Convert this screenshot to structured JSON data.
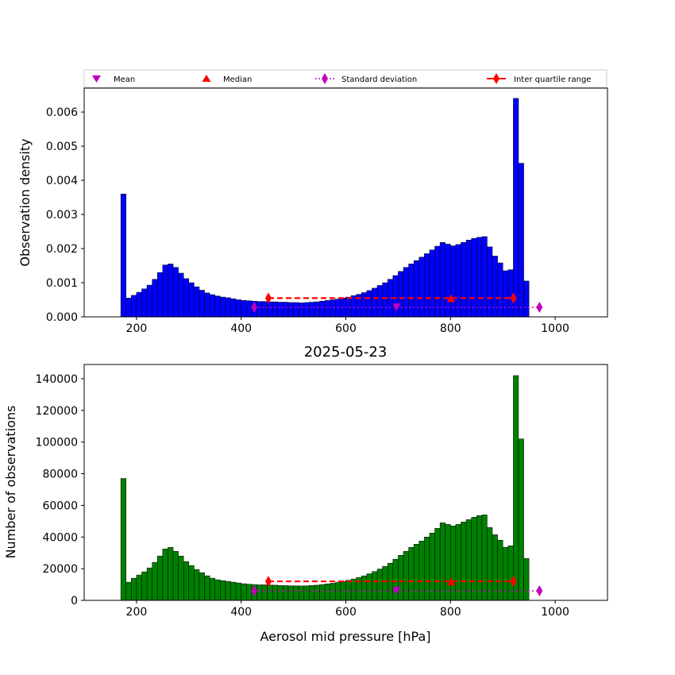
{
  "chart_data": [
    {
      "type": "bar",
      "title": "",
      "xlabel": "",
      "ylabel": "Observation density",
      "xlim": [
        100,
        1100
      ],
      "ylim": [
        0,
        0.0067
      ],
      "xticks": [
        200,
        400,
        600,
        800,
        1000
      ],
      "yticks": [
        0.0,
        0.001,
        0.002,
        0.003,
        0.004,
        0.005,
        0.006
      ],
      "ytick_labels": [
        "0.000",
        "0.001",
        "0.002",
        "0.003",
        "0.004",
        "0.005",
        "0.006"
      ],
      "bar_color": "#0000ff",
      "bin_start": 170,
      "bin_width": 10,
      "values": [
        0.0036,
        0.00055,
        0.00063,
        0.00072,
        0.00082,
        0.00093,
        0.0011,
        0.0013,
        0.00152,
        0.00155,
        0.00145,
        0.00128,
        0.00112,
        0.001,
        0.00088,
        0.00078,
        0.0007,
        0.00065,
        0.00061,
        0.00058,
        0.00056,
        0.00053,
        0.0005,
        0.00048,
        0.00047,
        0.00046,
        0.00045,
        0.00045,
        0.00044,
        0.00044,
        0.00043,
        0.00043,
        0.00042,
        0.00042,
        0.00041,
        0.00042,
        0.00043,
        0.00044,
        0.00046,
        0.00048,
        0.0005,
        0.00052,
        0.00055,
        0.00058,
        0.00062,
        0.00066,
        0.00071,
        0.00077,
        0.00084,
        0.00092,
        0.001,
        0.0011,
        0.00121,
        0.00133,
        0.00145,
        0.00155,
        0.00165,
        0.00175,
        0.00185,
        0.00196,
        0.00207,
        0.00218,
        0.00213,
        0.00208,
        0.00212,
        0.00218,
        0.00225,
        0.0023,
        0.00233,
        0.00235,
        0.00205,
        0.00178,
        0.00158,
        0.00135,
        0.00138,
        0.0064,
        0.0045,
        0.00105
      ],
      "stats": {
        "mean": {
          "x": 697,
          "y": 0.00028
        },
        "median": {
          "x": 801,
          "y": 0.00055
        },
        "std": {
          "x": [
            425,
            970
          ],
          "y": 0.00028
        },
        "iqr": {
          "x": [
            452,
            920
          ],
          "y": 0.00055
        }
      }
    },
    {
      "type": "bar",
      "title": "2025-05-23",
      "xlabel": "Aerosol mid pressure [hPa]",
      "ylabel": "Number of observations",
      "xlim": [
        100,
        1100
      ],
      "ylim": [
        0,
        149000
      ],
      "xticks": [
        200,
        400,
        600,
        800,
        1000
      ],
      "yticks": [
        0,
        20000,
        40000,
        60000,
        80000,
        100000,
        120000,
        140000
      ],
      "ytick_labels": [
        "0",
        "20000",
        "40000",
        "60000",
        "80000",
        "100000",
        "120000",
        "140000"
      ],
      "bar_color": "#008000",
      "bin_start": 170,
      "bin_width": 10,
      "values": [
        77000,
        11500,
        14000,
        16000,
        18000,
        20500,
        24000,
        28000,
        32500,
        33500,
        31000,
        28000,
        24500,
        22000,
        19500,
        17500,
        15500,
        14000,
        13000,
        12500,
        12000,
        11500,
        11000,
        10500,
        10200,
        10000,
        9800,
        9800,
        9700,
        9600,
        9400,
        9300,
        9200,
        9200,
        9100,
        9200,
        9400,
        9600,
        10000,
        10400,
        10800,
        11300,
        12000,
        12700,
        13500,
        14500,
        15500,
        16800,
        18200,
        19800,
        21500,
        23500,
        26000,
        28500,
        31000,
        33500,
        35500,
        37500,
        40000,
        42500,
        45500,
        49000,
        48000,
        47000,
        48000,
        49500,
        51000,
        52500,
        53500,
        54000,
        46000,
        41500,
        38000,
        33500,
        34500,
        142000,
        102000,
        26500
      ],
      "stats": {
        "mean": {
          "x": 697,
          "y": 6000
        },
        "median": {
          "x": 801,
          "y": 12000
        },
        "std": {
          "x": [
            425,
            970
          ],
          "y": 6000
        },
        "iqr": {
          "x": [
            452,
            920
          ],
          "y": 12000
        }
      }
    }
  ],
  "legend": {
    "placement": "above top plot",
    "entries": [
      {
        "label": "Mean",
        "marker": "triangle-down",
        "color": "#bf00bf"
      },
      {
        "label": "Median",
        "marker": "triangle-up",
        "color": "#ff0000"
      },
      {
        "label": "Standard deviation",
        "marker": "diamond-dotted",
        "color": "#bf00bf"
      },
      {
        "label": "Inter quartile range",
        "marker": "diamond-solid",
        "color": "#ff0000"
      }
    ]
  },
  "colors": {
    "std_line": "#bf00bf",
    "iqr_line": "#ff0000",
    "mean_marker": "#bf00bf",
    "median_marker": "#ff0000"
  }
}
